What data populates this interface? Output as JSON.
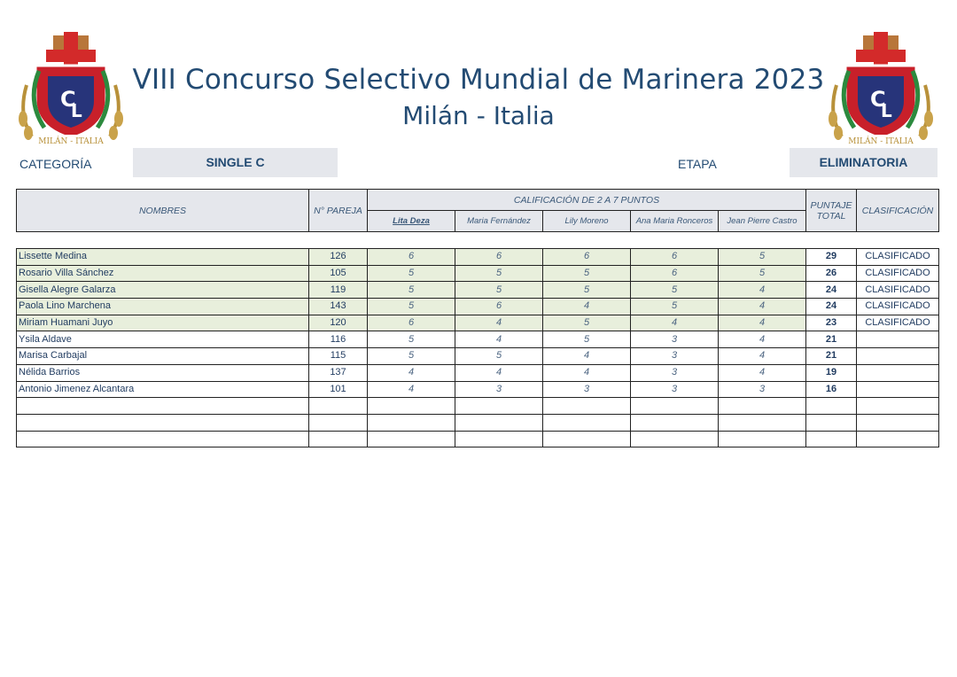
{
  "header": {
    "title_line1": "VIII Concurso Selectivo Mundial de Marinera 2023",
    "title_line2": "Milán - Italia",
    "logo_text": "MILÁN - ITALIA",
    "logo_letters": [
      "C",
      "L"
    ]
  },
  "info": {
    "category_label": "CATEGORÍA",
    "category_value": "SINGLE C",
    "stage_label": "ETAPA",
    "stage_value": "ELIMINATORIA"
  },
  "table": {
    "col_names": "NOMBRES",
    "col_pair": "N° PAREJA",
    "col_scores": "CALIFICACIÓN DE 2 A 7 PUNTOS",
    "col_total_1": "PUNTAJE",
    "col_total_2": "TOTAL",
    "col_class": "CLASIFICACIÓN",
    "judges": [
      "Lita Deza",
      "Maria Fernández",
      "Lily Moreno",
      "Ana Maria Ronceros",
      "Jean Pierre Castro"
    ],
    "rows": [
      {
        "name": "Lissette Medina",
        "pair": "126",
        "scores": [
          "6",
          "6",
          "6",
          "6",
          "5"
        ],
        "total": "29",
        "status": "CLASIFICADO",
        "highlight": true
      },
      {
        "name": "Rosario Villa Sánchez",
        "pair": "105",
        "scores": [
          "5",
          "5",
          "5",
          "6",
          "5"
        ],
        "total": "26",
        "status": "CLASIFICADO",
        "highlight": true
      },
      {
        "name": "Gisella Alegre Galarza",
        "pair": "119",
        "scores": [
          "5",
          "5",
          "5",
          "5",
          "4"
        ],
        "total": "24",
        "status": "CLASIFICADO",
        "highlight": true
      },
      {
        "name": "Paola Lino Marchena",
        "pair": "143",
        "scores": [
          "5",
          "6",
          "4",
          "5",
          "4"
        ],
        "total": "24",
        "status": "CLASIFICADO",
        "highlight": true
      },
      {
        "name": "Miriam Huamani Juyo",
        "pair": "120",
        "scores": [
          "6",
          "4",
          "5",
          "4",
          "4"
        ],
        "total": "23",
        "status": "CLASIFICADO",
        "highlight": true
      },
      {
        "name": "Ysila Aldave",
        "pair": "116",
        "scores": [
          "5",
          "4",
          "5",
          "3",
          "4"
        ],
        "total": "21",
        "status": "",
        "highlight": false
      },
      {
        "name": "Marisa Carbajal",
        "pair": "115",
        "scores": [
          "5",
          "5",
          "4",
          "3",
          "4"
        ],
        "total": "21",
        "status": "",
        "highlight": false
      },
      {
        "name": "Nélida Barrios",
        "pair": "137",
        "scores": [
          "4",
          "4",
          "4",
          "3",
          "4"
        ],
        "total": "19",
        "status": "",
        "highlight": false
      },
      {
        "name": "Antonio Jimenez Alcantara",
        "pair": "101",
        "scores": [
          "4",
          "3",
          "3",
          "3",
          "3"
        ],
        "total": "16",
        "status": "",
        "highlight": false
      },
      {
        "name": "",
        "pair": "",
        "scores": [
          "",
          "",
          "",
          "",
          ""
        ],
        "total": "",
        "status": "",
        "highlight": false
      },
      {
        "name": "",
        "pair": "",
        "scores": [
          "",
          "",
          "",
          "",
          ""
        ],
        "total": "",
        "status": "",
        "highlight": false
      },
      {
        "name": "",
        "pair": "",
        "scores": [
          "",
          "",
          "",
          "",
          ""
        ],
        "total": "",
        "status": "",
        "highlight": false
      }
    ]
  },
  "colors": {
    "title": "#234b73",
    "header_fill": "#e5e7ec",
    "qualified_row": "#e8efdc",
    "crest_red": "#c8202a",
    "crest_blue": "#27347a",
    "laurel_gold": "#b8913a"
  }
}
